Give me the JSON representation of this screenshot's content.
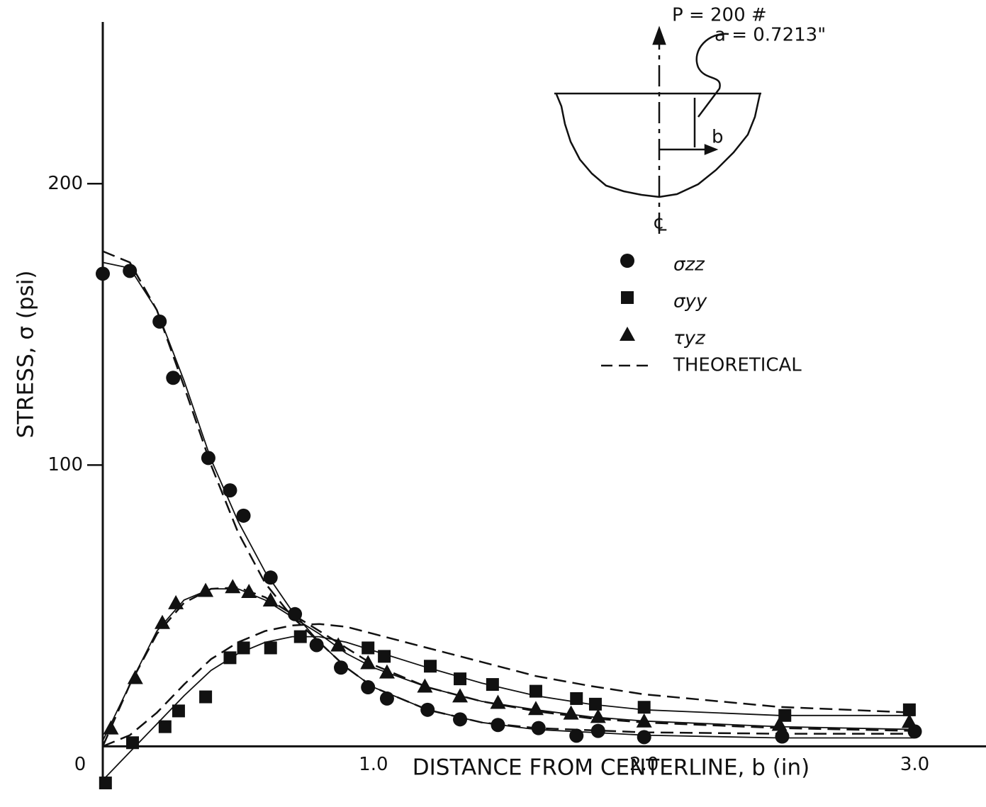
{
  "chart_data": {
    "type": "scatter",
    "x_label": "DISTANCE  FROM CENTERLINE,  b  (in)",
    "y_label": "STRESS,  σ  (psi)",
    "xlim": [
      0,
      3.25
    ],
    "ylim": [
      -15,
      260
    ],
    "xticks": [
      {
        "value": 0,
        "label": "0"
      },
      {
        "value": 1,
        "label": "1.0"
      },
      {
        "value": 2,
        "label": "2.0"
      },
      {
        "value": 3,
        "label": "3.0"
      }
    ],
    "yticks": [
      100,
      200
    ],
    "color": "#111111",
    "series": [
      {
        "name": "σzz",
        "marker": "circle",
        "x": [
          0,
          0.1,
          0.21,
          0.26,
          0.39,
          0.47,
          0.52,
          0.62,
          0.71,
          0.79,
          0.88,
          0.98,
          1.05,
          1.2,
          1.32,
          1.46,
          1.61,
          1.75,
          1.83,
          2.0,
          2.51,
          3.0
        ],
        "values": [
          168,
          169,
          151,
          131,
          102.5,
          91,
          82,
          60,
          47,
          36,
          28,
          21,
          17,
          13,
          9.6,
          7.6,
          6.5,
          3.8,
          5.5,
          3.3,
          3.5,
          5.3
        ]
      },
      {
        "name": "σyy",
        "marker": "square",
        "x": [
          0.01,
          0.11,
          0.23,
          0.28,
          0.38,
          0.47,
          0.52,
          0.62,
          0.73,
          0.98,
          1.04,
          1.21,
          1.32,
          1.44,
          1.6,
          1.75,
          1.82,
          2.0,
          2.52,
          2.98
        ],
        "values": [
          -13,
          1.3,
          7,
          12.6,
          17.6,
          31.5,
          35,
          35,
          39,
          35,
          32,
          28.5,
          24,
          22,
          19.6,
          17,
          15,
          13.9,
          11,
          13
        ]
      },
      {
        "name": "τyz",
        "marker": "triangle",
        "x": [
          0.03,
          0.12,
          0.22,
          0.27,
          0.38,
          0.48,
          0.54,
          0.62,
          0.87,
          0.98,
          1.05,
          1.19,
          1.32,
          1.46,
          1.6,
          1.73,
          1.83,
          2.0,
          2.5,
          2.98
        ],
        "values": [
          6.5,
          24.4,
          44,
          51,
          55.4,
          56.7,
          55,
          52,
          36,
          29.7,
          26.4,
          21.4,
          17.9,
          15.6,
          13.4,
          11.8,
          10.6,
          9,
          7.8,
          8.8
        ]
      }
    ],
    "fits": [
      {
        "x": [
          0,
          0.1,
          0.2,
          0.3,
          0.4,
          0.5,
          0.6,
          0.7,
          0.8,
          0.9,
          1.0,
          1.2,
          1.4,
          1.6,
          2.0,
          2.5,
          3.0
        ],
        "values": [
          172,
          170,
          155,
          130,
          102,
          80,
          62,
          48,
          37,
          28,
          21,
          13,
          8.5,
          6,
          4,
          3,
          3
        ]
      },
      {
        "x": [
          0,
          0.1,
          0.2,
          0.3,
          0.4,
          0.5,
          0.6,
          0.7,
          0.8,
          0.9,
          1.0,
          1.2,
          1.4,
          1.6,
          1.8,
          2.0,
          2.5,
          3.0
        ],
        "values": [
          -12,
          -2,
          8,
          18,
          27,
          33,
          37,
          39,
          39,
          37,
          34,
          28,
          22.5,
          18,
          15,
          13,
          11,
          11
        ]
      },
      {
        "x": [
          0,
          0.1,
          0.2,
          0.3,
          0.4,
          0.5,
          0.6,
          0.7,
          0.8,
          0.9,
          1.0,
          1.2,
          1.4,
          1.6,
          1.8,
          2.0,
          2.5,
          3.0
        ],
        "values": [
          2,
          22,
          41,
          52,
          56,
          56,
          52,
          46,
          40,
          33,
          28,
          21,
          16,
          13,
          10.5,
          9,
          7,
          6
        ]
      }
    ],
    "theoretical": {
      "name": "THEORETICAL",
      "curves": [
        {
          "x": [
            0,
            0.1,
            0.2,
            0.3,
            0.4,
            0.5,
            0.6,
            0.7,
            0.8,
            0.9,
            1.0,
            1.2,
            1.4,
            1.6,
            2.0,
            2.5,
            3.0
          ],
          "values": [
            176,
            172,
            155,
            128,
            100,
            76,
            58,
            46,
            37,
            28,
            21,
            13,
            8.5,
            6.5,
            5,
            4.5,
            4.5
          ]
        },
        {
          "x": [
            0,
            0.1,
            0.2,
            0.3,
            0.4,
            0.5,
            0.6,
            0.7,
            0.8,
            0.9,
            1.0,
            1.2,
            1.4,
            1.6,
            1.8,
            2.0,
            2.5,
            3.0
          ],
          "values": [
            0,
            4,
            12,
            22,
            31,
            37,
            41,
            43,
            43.5,
            42.5,
            40,
            35,
            30,
            25,
            21.5,
            18.5,
            14,
            12
          ]
        },
        {
          "x": [
            0,
            0.1,
            0.2,
            0.3,
            0.4,
            0.5,
            0.6,
            0.7,
            0.8,
            0.9,
            1.0,
            1.2,
            1.4,
            1.6,
            1.8,
            2.0,
            2.5,
            3.0
          ],
          "values": [
            0,
            22,
            40,
            51,
            56,
            56.5,
            53,
            47,
            41,
            35,
            29,
            21,
            16,
            12.5,
            10,
            8.5,
            6.5,
            5.5
          ]
        }
      ]
    },
    "inset": {
      "load": "P = 200 #",
      "radius": "a = 0.7213\"",
      "depth": "b",
      "centerline": "℄"
    }
  }
}
